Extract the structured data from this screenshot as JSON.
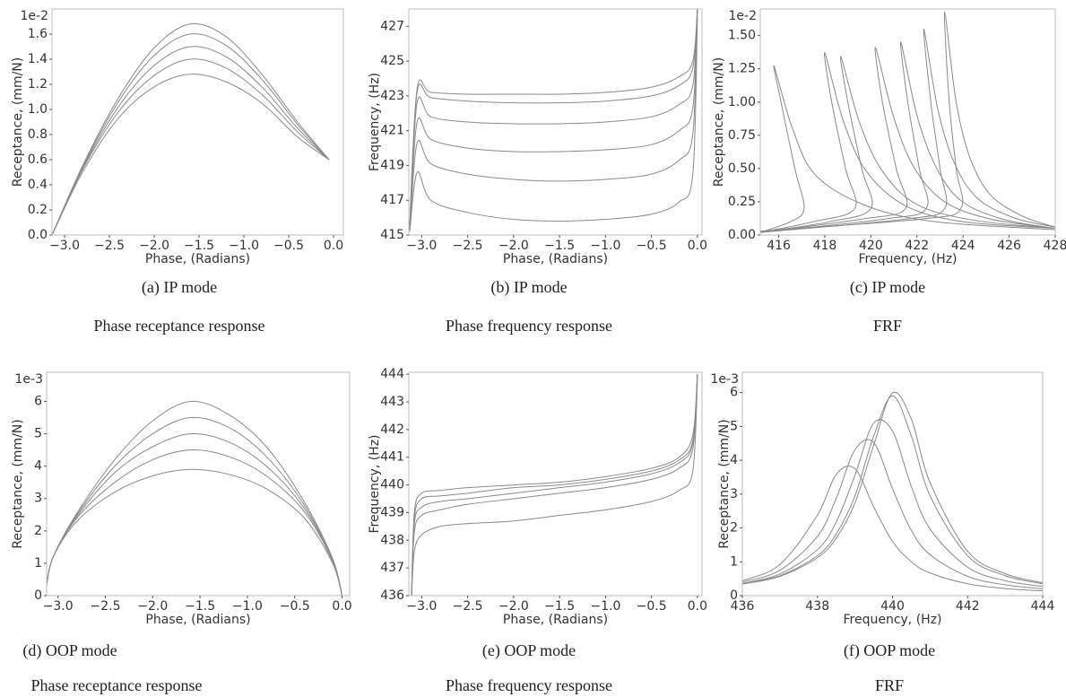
{
  "chart_data": [
    {
      "type": "line",
      "caption": "(a) IP mode",
      "subtitle": "Phase receptance response",
      "x_label": "Phase, (Radians)",
      "y_label": "Receptance, (mm/N)",
      "y_multiplier": "1e-2",
      "xlim": [
        -3.14,
        0.11
      ],
      "ylim": [
        0,
        1.8
      ],
      "xticks": [
        {
          "value": -3,
          "label": "−3.0"
        },
        {
          "value": -2.5,
          "label": "−2.5"
        },
        {
          "value": -2,
          "label": "−2.0"
        },
        {
          "value": -1.5,
          "label": "−1.5"
        },
        {
          "value": -1,
          "label": "−1.0"
        },
        {
          "value": -0.5,
          "label": "−0.5"
        },
        {
          "value": 0,
          "label": "0.0"
        }
      ],
      "yticks": [
        {
          "value": 0,
          "label": "0.0"
        },
        0.2,
        0.4,
        0.6,
        0.8,
        {
          "value": 1,
          "label": "1.0"
        },
        1.2,
        1.4,
        1.6
      ],
      "x": [
        -3.14,
        -2.8,
        -2.4,
        -2.0,
        -1.6,
        -1.2,
        -0.8,
        -0.4,
        -0.05
      ],
      "series": [
        {
          "color": "#8a8a8a",
          "values": [
            0,
            0.5,
            0.93,
            1.18,
            1.28,
            1.22,
            1.05,
            0.78,
            0.6
          ]
        },
        {
          "color": "#8a8a8a",
          "values": [
            0,
            0.52,
            0.98,
            1.27,
            1.4,
            1.33,
            1.12,
            0.82,
            0.6
          ]
        },
        {
          "color": "#8a8a8a",
          "values": [
            0,
            0.53,
            1.02,
            1.35,
            1.5,
            1.42,
            1.18,
            0.85,
            0.6
          ]
        },
        {
          "color": "#8a8a8a",
          "values": [
            0,
            0.54,
            1.06,
            1.43,
            1.6,
            1.51,
            1.24,
            0.88,
            0.6
          ]
        },
        {
          "color": "#8a8a8a",
          "values": [
            0,
            0.55,
            1.09,
            1.49,
            1.68,
            1.58,
            1.28,
            0.9,
            0.6
          ]
        }
      ]
    },
    {
      "type": "line",
      "caption": "(b) IP mode",
      "subtitle": "Phase frequency response",
      "x_label": "Phase, (Radians)",
      "y_label": "Frequency, (Hz)",
      "xlim": [
        -3.14,
        0.05
      ],
      "ylim": [
        415,
        428
      ],
      "xticks": [
        {
          "value": -3,
          "label": "−3.0"
        },
        {
          "value": -2.5,
          "label": "−2.5"
        },
        {
          "value": -2,
          "label": "−2.0"
        },
        {
          "value": -1.5,
          "label": "−1.5"
        },
        {
          "value": -1,
          "label": "−1.0"
        },
        {
          "value": -0.5,
          "label": "−0.5"
        },
        {
          "value": 0,
          "label": "0.0"
        }
      ],
      "yticks": [
        415,
        417,
        419,
        421,
        423,
        425,
        427
      ],
      "x": [
        -3.13,
        -3.05,
        -2.9,
        -2.5,
        -2.0,
        -1.5,
        -1.0,
        -0.5,
        -0.2,
        -0.05,
        0.0
      ],
      "series": [
        {
          "color": "#8a8a8a",
          "values": [
            415.2,
            418.6,
            417.0,
            416.3,
            415.9,
            415.8,
            415.9,
            416.2,
            416.9,
            418.5,
            427.5
          ]
        },
        {
          "color": "#8a8a8a",
          "values": [
            415.3,
            420.3,
            419.1,
            418.5,
            418.2,
            418.1,
            418.2,
            418.5,
            419.3,
            420.8,
            427.8
          ]
        },
        {
          "color": "#8a8a8a",
          "values": [
            415.4,
            421.5,
            420.5,
            420.0,
            419.8,
            419.8,
            419.9,
            420.2,
            421.0,
            422.3,
            428
          ]
        },
        {
          "color": "#8a8a8a",
          "values": [
            415.5,
            422.6,
            421.8,
            421.5,
            421.4,
            421.4,
            421.5,
            421.8,
            422.5,
            423.6,
            428
          ]
        },
        {
          "color": "#8a8a8a",
          "values": [
            415.6,
            423.2,
            422.9,
            422.7,
            422.6,
            422.6,
            422.7,
            423.0,
            423.6,
            424.6,
            428
          ]
        },
        {
          "color": "#8a8a8a",
          "values": [
            415.6,
            423.4,
            423.2,
            423.1,
            423.1,
            423.1,
            423.2,
            423.5,
            424.1,
            425.0,
            428
          ]
        }
      ]
    },
    {
      "type": "line",
      "caption": "(c) IP mode",
      "subtitle": "FRF",
      "x_label": "Frequency, (Hz)",
      "y_label": "Receptance, (mm/N)",
      "y_multiplier": "1e-2",
      "xlim": [
        415.2,
        428
      ],
      "ylim": [
        0,
        1.7
      ],
      "xticks": [
        416,
        418,
        420,
        422,
        424,
        426,
        428
      ],
      "yticks": [
        {
          "value": 0,
          "label": "0.00"
        },
        0.25,
        {
          "value": 0.5,
          "label": "0.50"
        },
        0.75,
        {
          "value": 1,
          "label": "1.00"
        },
        1.25,
        {
          "value": 1.5,
          "label": "1.50"
        }
      ],
      "series": [
        {
          "color": "#8a8a8a",
          "x": [
            415.2,
            416.5,
            417.1,
            416.7,
            416.1,
            415.8,
            416.6,
            417.6,
            419.8,
            422.8,
            428
          ],
          "values": [
            0.02,
            0.1,
            0.2,
            0.5,
            1.0,
            1.27,
            0.8,
            0.45,
            0.22,
            0.1,
            0.04
          ]
        },
        {
          "color": "#8a8a8a",
          "x": [
            415.2,
            417.5,
            419.3,
            418.9,
            418.3,
            418.0,
            418.8,
            419.8,
            421.5,
            424.0,
            428
          ],
          "values": [
            0.02,
            0.1,
            0.2,
            0.5,
            1.0,
            1.37,
            0.86,
            0.48,
            0.22,
            0.1,
            0.05
          ]
        },
        {
          "color": "#8a8a8a",
          "x": [
            415.2,
            418.2,
            420.0,
            419.6,
            419.0,
            418.7,
            419.5,
            420.5,
            422.0,
            424.5,
            428
          ],
          "values": [
            0.02,
            0.1,
            0.2,
            0.5,
            1.0,
            1.34,
            0.85,
            0.48,
            0.23,
            0.11,
            0.05
          ]
        },
        {
          "color": "#8a8a8a",
          "x": [
            415.2,
            419.6,
            421.5,
            421.1,
            420.5,
            420.2,
            421.0,
            421.9,
            423.2,
            425.2,
            428
          ],
          "values": [
            0.02,
            0.12,
            0.2,
            0.5,
            1.0,
            1.41,
            0.88,
            0.5,
            0.25,
            0.12,
            0.05
          ]
        },
        {
          "color": "#8a8a8a",
          "x": [
            415.2,
            420.6,
            422.4,
            422.1,
            421.6,
            421.3,
            422.0,
            422.8,
            423.9,
            425.7,
            428
          ],
          "values": [
            0.02,
            0.12,
            0.2,
            0.5,
            1.0,
            1.45,
            0.9,
            0.52,
            0.26,
            0.12,
            0.05
          ]
        },
        {
          "color": "#8a8a8a",
          "x": [
            415.2,
            421.5,
            423.2,
            423.0,
            422.6,
            422.3,
            422.9,
            423.6,
            424.6,
            426.2,
            428
          ],
          "values": [
            0.02,
            0.12,
            0.2,
            0.5,
            1.0,
            1.55,
            0.95,
            0.55,
            0.28,
            0.13,
            0.06
          ]
        },
        {
          "color": "#8a8a8a",
          "x": [
            415.2,
            422.2,
            423.9,
            423.7,
            423.4,
            423.2,
            423.7,
            424.3,
            425.2,
            426.6,
            428
          ],
          "values": [
            0.03,
            0.12,
            0.2,
            0.5,
            1.0,
            1.68,
            1.0,
            0.58,
            0.3,
            0.14,
            0.06
          ]
        }
      ]
    },
    {
      "type": "line",
      "caption": "(d) OOP mode",
      "subtitle": "Phase receptance response",
      "x_label": "Phase, (Radians)",
      "y_label": "Receptance, (mm/N)",
      "y_multiplier": "1e-3",
      "xlim": [
        -3.12,
        0.08
      ],
      "ylim": [
        0,
        6.9
      ],
      "xticks": [
        {
          "value": -3,
          "label": "−3.0"
        },
        {
          "value": -2.5,
          "label": "−2.5"
        },
        {
          "value": -2,
          "label": "−2.0"
        },
        {
          "value": -1.5,
          "label": "−1.5"
        },
        {
          "value": -1,
          "label": "−1.0"
        },
        {
          "value": -0.5,
          "label": "−0.5"
        },
        {
          "value": 0,
          "label": "0.0"
        }
      ],
      "yticks": [
        0,
        1,
        2,
        3,
        4,
        5,
        6
      ],
      "x": [
        -3.12,
        -3.05,
        -2.8,
        -2.4,
        -2.0,
        -1.6,
        -1.2,
        -0.8,
        -0.4,
        -0.1,
        0.0
      ],
      "series": [
        {
          "color": "#8a8a8a",
          "values": [
            0.35,
            1.2,
            2.3,
            3.2,
            3.7,
            3.9,
            3.75,
            3.3,
            2.4,
            1.0,
            0
          ]
        },
        {
          "color": "#8a8a8a",
          "values": [
            0.35,
            1.2,
            2.4,
            3.5,
            4.2,
            4.5,
            4.3,
            3.7,
            2.6,
            1.05,
            0
          ]
        },
        {
          "color": "#8a8a8a",
          "values": [
            0.35,
            1.2,
            2.45,
            3.8,
            4.6,
            5.0,
            4.75,
            4.0,
            2.7,
            1.1,
            0
          ]
        },
        {
          "color": "#8a8a8a",
          "values": [
            0.35,
            1.2,
            2.5,
            4.0,
            5.0,
            5.5,
            5.2,
            4.3,
            2.8,
            1.1,
            0
          ]
        },
        {
          "color": "#8a8a8a",
          "values": [
            0.35,
            1.2,
            2.55,
            4.2,
            5.4,
            6.0,
            5.6,
            4.6,
            2.9,
            1.15,
            0
          ]
        }
      ]
    },
    {
      "type": "line",
      "caption": "(e) OOP mode",
      "subtitle": "Phase frequency response",
      "x_label": "Phase, (Radians)",
      "y_label": "Frequency, (Hz)",
      "xlim": [
        -3.14,
        0.05
      ],
      "ylim": [
        436,
        444.07
      ],
      "xticks": [
        {
          "value": -3,
          "label": "−3.0"
        },
        {
          "value": -2.5,
          "label": "−2.5"
        },
        {
          "value": -2,
          "label": "−2.0"
        },
        {
          "value": -1.5,
          "label": "−1.5"
        },
        {
          "value": -1,
          "label": "−1.0"
        },
        {
          "value": -0.5,
          "label": "−0.5"
        },
        {
          "value": 0,
          "label": "0.0"
        }
      ],
      "yticks": [
        436,
        437,
        438,
        439,
        440,
        441,
        442,
        443,
        444
      ],
      "x": [
        -3.11,
        -3.08,
        -3.0,
        -2.8,
        -2.5,
        -2.0,
        -1.5,
        -1.0,
        -0.5,
        -0.2,
        -0.05,
        0.0
      ],
      "series": [
        {
          "color": "#8a8a8a",
          "values": [
            436,
            437.6,
            438.2,
            438.5,
            438.6,
            438.7,
            438.9,
            439.1,
            439.4,
            439.8,
            440.5,
            443.8
          ]
        },
        {
          "color": "#8a8a8a",
          "values": [
            436,
            438.3,
            438.9,
            439.1,
            439.3,
            439.5,
            439.7,
            439.9,
            440.2,
            440.6,
            441.3,
            444
          ]
        },
        {
          "color": "#8a8a8a",
          "values": [
            436,
            438.6,
            439.2,
            439.4,
            439.5,
            439.7,
            439.9,
            440.1,
            440.4,
            440.8,
            441.5,
            444
          ]
        },
        {
          "color": "#8a8a8a",
          "values": [
            436,
            438.8,
            439.5,
            439.6,
            439.7,
            439.9,
            440.0,
            440.2,
            440.5,
            440.9,
            441.6,
            444
          ]
        },
        {
          "color": "#8a8a8a",
          "values": [
            436,
            439.0,
            439.7,
            439.8,
            439.9,
            440.0,
            440.1,
            440.3,
            440.6,
            441.0,
            441.8,
            444
          ]
        }
      ]
    },
    {
      "type": "line",
      "caption": "(f) OOP mode",
      "subtitle": "FRF",
      "x_label": "Frequency, (Hz)",
      "y_label": "Receptance, (mm/N)",
      "y_multiplier": "1e-3",
      "xlim": [
        436,
        444
      ],
      "ylim": [
        0,
        6.6
      ],
      "xticks": [
        436,
        438,
        440,
        442,
        444
      ],
      "yticks": [
        0,
        1,
        2,
        3,
        4,
        5,
        6
      ],
      "x": [
        436,
        437,
        438,
        438.5,
        439,
        439.5,
        440,
        440.5,
        441,
        442,
        443,
        444
      ],
      "series": [
        {
          "color": "#8a8a8a",
          "values": [
            0.44,
            0.92,
            2.38,
            3.58,
            3.75,
            2.62,
            1.6,
            1.0,
            0.67,
            0.35,
            0.21,
            0.14
          ]
        },
        {
          "color": "#8a8a8a",
          "values": [
            0.4,
            0.75,
            1.75,
            2.87,
            4.31,
            4.52,
            3.16,
            1.93,
            1.21,
            0.57,
            0.32,
            0.2
          ]
        },
        {
          "color": "#8a8a8a",
          "values": [
            0.36,
            0.64,
            1.36,
            2.17,
            3.56,
            5.1,
            4.86,
            3.23,
            1.97,
            0.84,
            0.44,
            0.27
          ]
        },
        {
          "color": "#8a8a8a",
          "values": [
            0.35,
            0.59,
            1.18,
            1.82,
            2.95,
            4.72,
            5.9,
            4.72,
            2.95,
            1.18,
            0.59,
            0.35
          ]
        },
        {
          "color": "#8a8a8a",
          "values": [
            0.34,
            0.57,
            1.12,
            1.7,
            2.74,
            4.45,
            5.99,
            5.22,
            3.34,
            1.31,
            0.65,
            0.38
          ]
        }
      ]
    }
  ]
}
